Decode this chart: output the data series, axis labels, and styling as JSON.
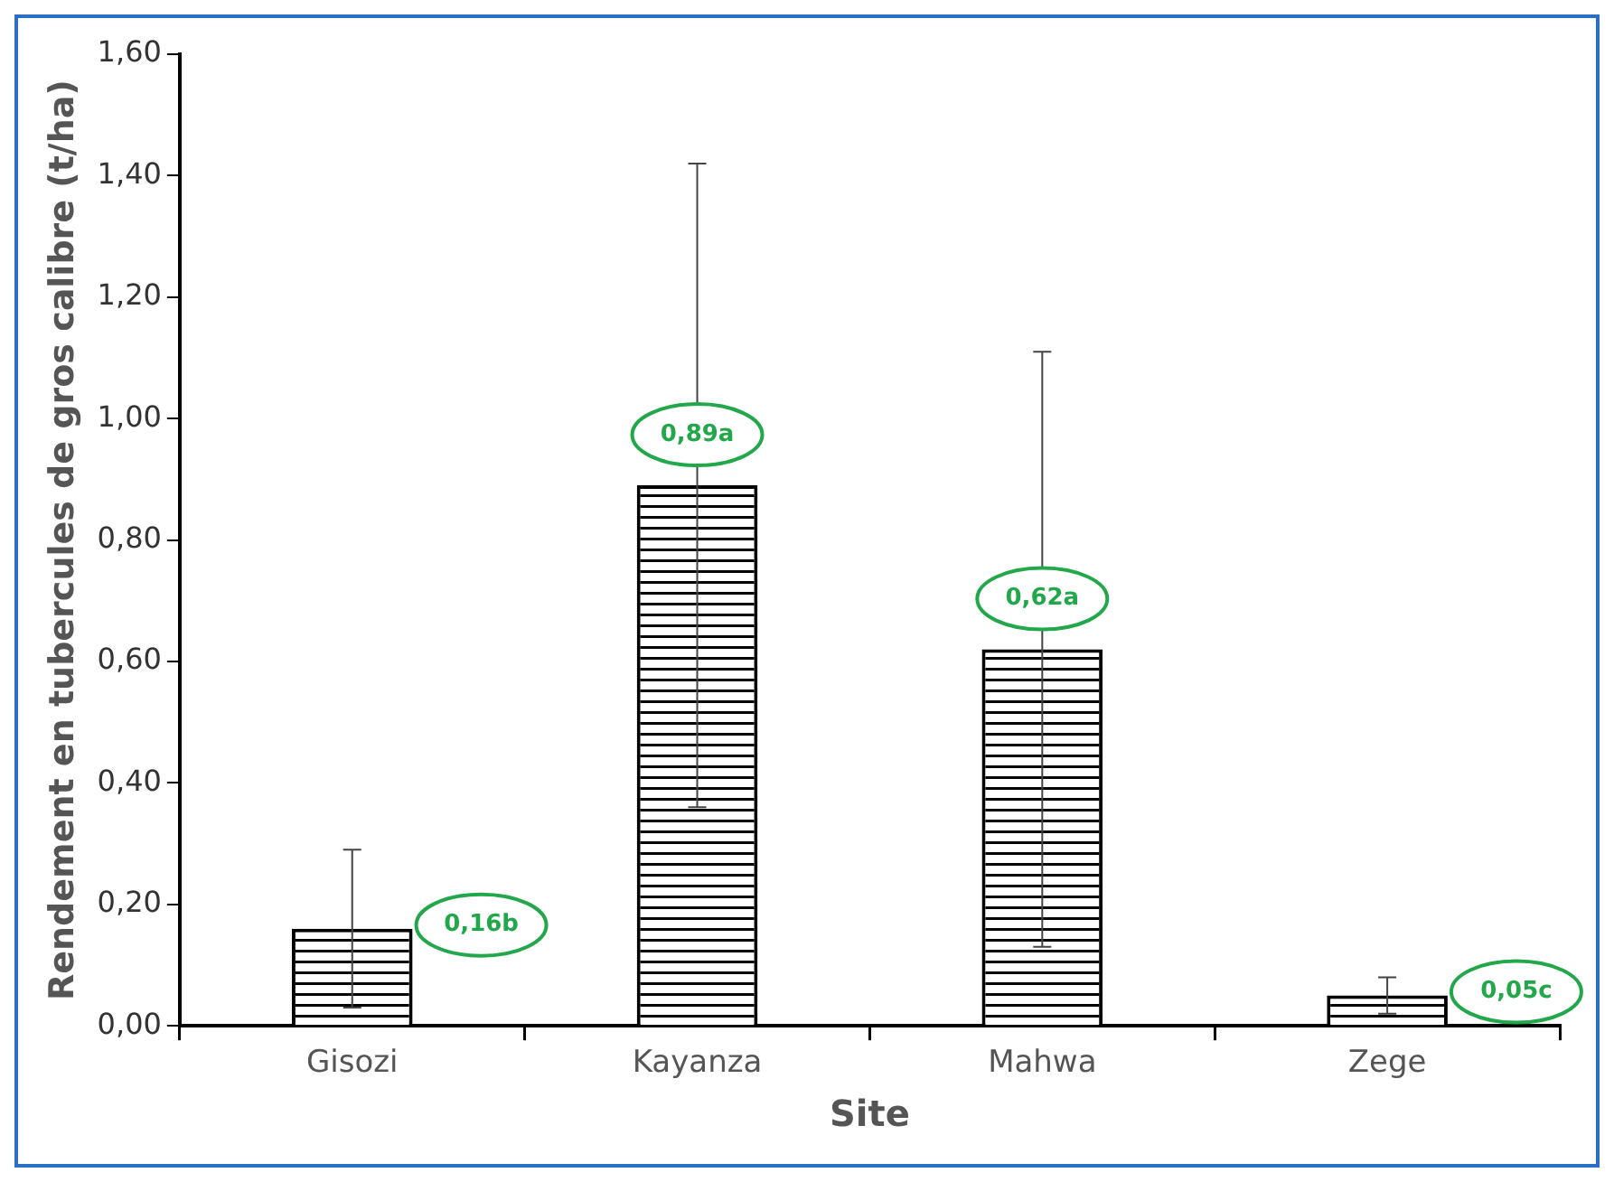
{
  "chart_data": {
    "type": "bar",
    "xlabel": "Site",
    "ylabel": "Rendement en tubercules de gros calibre (t/ha)",
    "categories": [
      "Gisozi",
      "Kayanza",
      "Mahwa",
      "Zege"
    ],
    "values": [
      0.16,
      0.89,
      0.62,
      0.05
    ],
    "errors": [
      0.13,
      0.53,
      0.49,
      0.03
    ],
    "value_labels": [
      "0,16b",
      "0,89a",
      "0,62a",
      "0,05c"
    ],
    "color": "#000000",
    "ylim": [
      0,
      1.6
    ],
    "yticks": [
      {
        "value": 0,
        "label": "0,00"
      },
      {
        "value": 0.2,
        "label": "0,20"
      },
      {
        "value": 0.4,
        "label": "0,40"
      },
      {
        "value": 0.6,
        "label": "0,60"
      },
      {
        "value": 0.8,
        "label": "0,80"
      },
      {
        "value": 1,
        "label": "1,00"
      },
      {
        "value": 1.2,
        "label": "1,20"
      },
      {
        "value": 1.4,
        "label": "1,40"
      },
      {
        "value": 1.6,
        "label": "1,60"
      }
    ],
    "grid": false,
    "legend": false
  }
}
